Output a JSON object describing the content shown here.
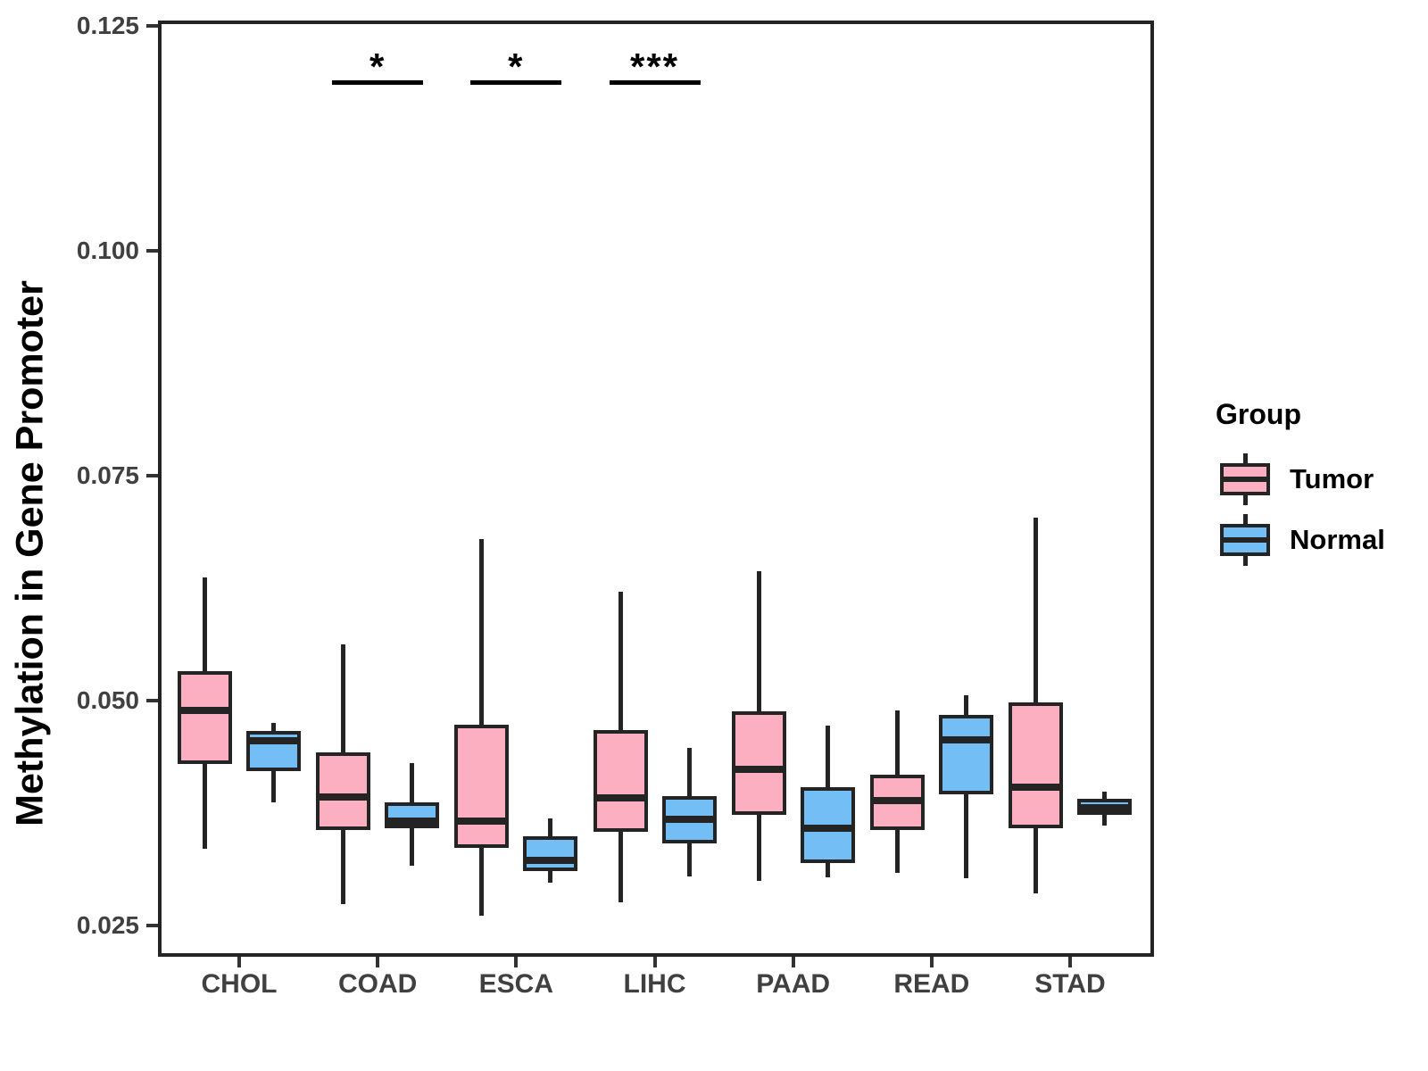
{
  "colors": {
    "tumor_fill": "#FCAFC0",
    "normal_fill": "#74BEF6",
    "stroke": "#242424",
    "tick_text": "#404040",
    "annotation": "#000000",
    "background": "#ffffff"
  },
  "chart_data": {
    "type": "boxplot",
    "title": "",
    "xlabel": "",
    "ylabel": "Methylation in Gene Promoter",
    "categories": [
      "CHOL",
      "COAD",
      "ESCA",
      "LIHC",
      "PAAD",
      "READ",
      "STAD"
    ],
    "y_ticks": [
      0.025,
      0.05,
      0.075,
      0.1,
      0.125
    ],
    "y_tick_labels": [
      "0.025",
      "0.050",
      "0.075",
      "0.100",
      "0.125"
    ],
    "ylim": [
      0.0215,
      0.1256
    ],
    "grid": "off",
    "legend_position": "right",
    "legend": {
      "title": "Group",
      "entries": [
        {
          "label": "Tumor",
          "color": "#FCAFC0"
        },
        {
          "label": "Normal",
          "color": "#74BEF6"
        }
      ]
    },
    "series": [
      {
        "name": "Tumor",
        "color": "#FCAFC0",
        "boxes": [
          {
            "category": "CHOL",
            "min": 0.0335,
            "q1": 0.0429,
            "median": 0.0489,
            "q3": 0.0533,
            "max": 0.0637
          },
          {
            "category": "COAD",
            "min": 0.0274,
            "q1": 0.0356,
            "median": 0.0393,
            "q3": 0.0442,
            "max": 0.0562
          },
          {
            "category": "ESCA",
            "min": 0.0261,
            "q1": 0.0336,
            "median": 0.0366,
            "q3": 0.0473,
            "max": 0.0679
          },
          {
            "category": "LIHC",
            "min": 0.0276,
            "q1": 0.0354,
            "median": 0.0392,
            "q3": 0.0467,
            "max": 0.0621
          },
          {
            "category": "PAAD",
            "min": 0.0299,
            "q1": 0.0373,
            "median": 0.0423,
            "q3": 0.0488,
            "max": 0.0644
          },
          {
            "category": "READ",
            "min": 0.0308,
            "q1": 0.0356,
            "median": 0.0389,
            "q3": 0.0417,
            "max": 0.0489
          },
          {
            "category": "STAD",
            "min": 0.0285,
            "q1": 0.0358,
            "median": 0.0404,
            "q3": 0.0498,
            "max": 0.0703
          }
        ]
      },
      {
        "name": "Normal",
        "color": "#74BEF6",
        "boxes": [
          {
            "category": "CHOL",
            "min": 0.0387,
            "q1": 0.0421,
            "median": 0.0455,
            "q3": 0.0466,
            "max": 0.0475
          },
          {
            "category": "COAD",
            "min": 0.0316,
            "q1": 0.0358,
            "median": 0.0366,
            "q3": 0.0387,
            "max": 0.043
          },
          {
            "category": "ESCA",
            "min": 0.0297,
            "q1": 0.031,
            "median": 0.0322,
            "q3": 0.0349,
            "max": 0.0369
          },
          {
            "category": "LIHC",
            "min": 0.0304,
            "q1": 0.0341,
            "median": 0.0368,
            "q3": 0.0394,
            "max": 0.0447
          },
          {
            "category": "PAAD",
            "min": 0.0303,
            "q1": 0.0319,
            "median": 0.0358,
            "q3": 0.0404,
            "max": 0.0472
          },
          {
            "category": "READ",
            "min": 0.0302,
            "q1": 0.0396,
            "median": 0.0456,
            "q3": 0.0484,
            "max": 0.0506
          },
          {
            "category": "STAD",
            "min": 0.0361,
            "q1": 0.0373,
            "median": 0.0381,
            "q3": 0.0391,
            "max": 0.0399
          }
        ]
      }
    ],
    "significance": [
      {
        "category": "COAD",
        "label": "*",
        "y": 0.1188
      },
      {
        "category": "ESCA",
        "label": "*",
        "y": 0.1188
      },
      {
        "category": "LIHC",
        "label": "***",
        "y": 0.1188
      }
    ]
  }
}
